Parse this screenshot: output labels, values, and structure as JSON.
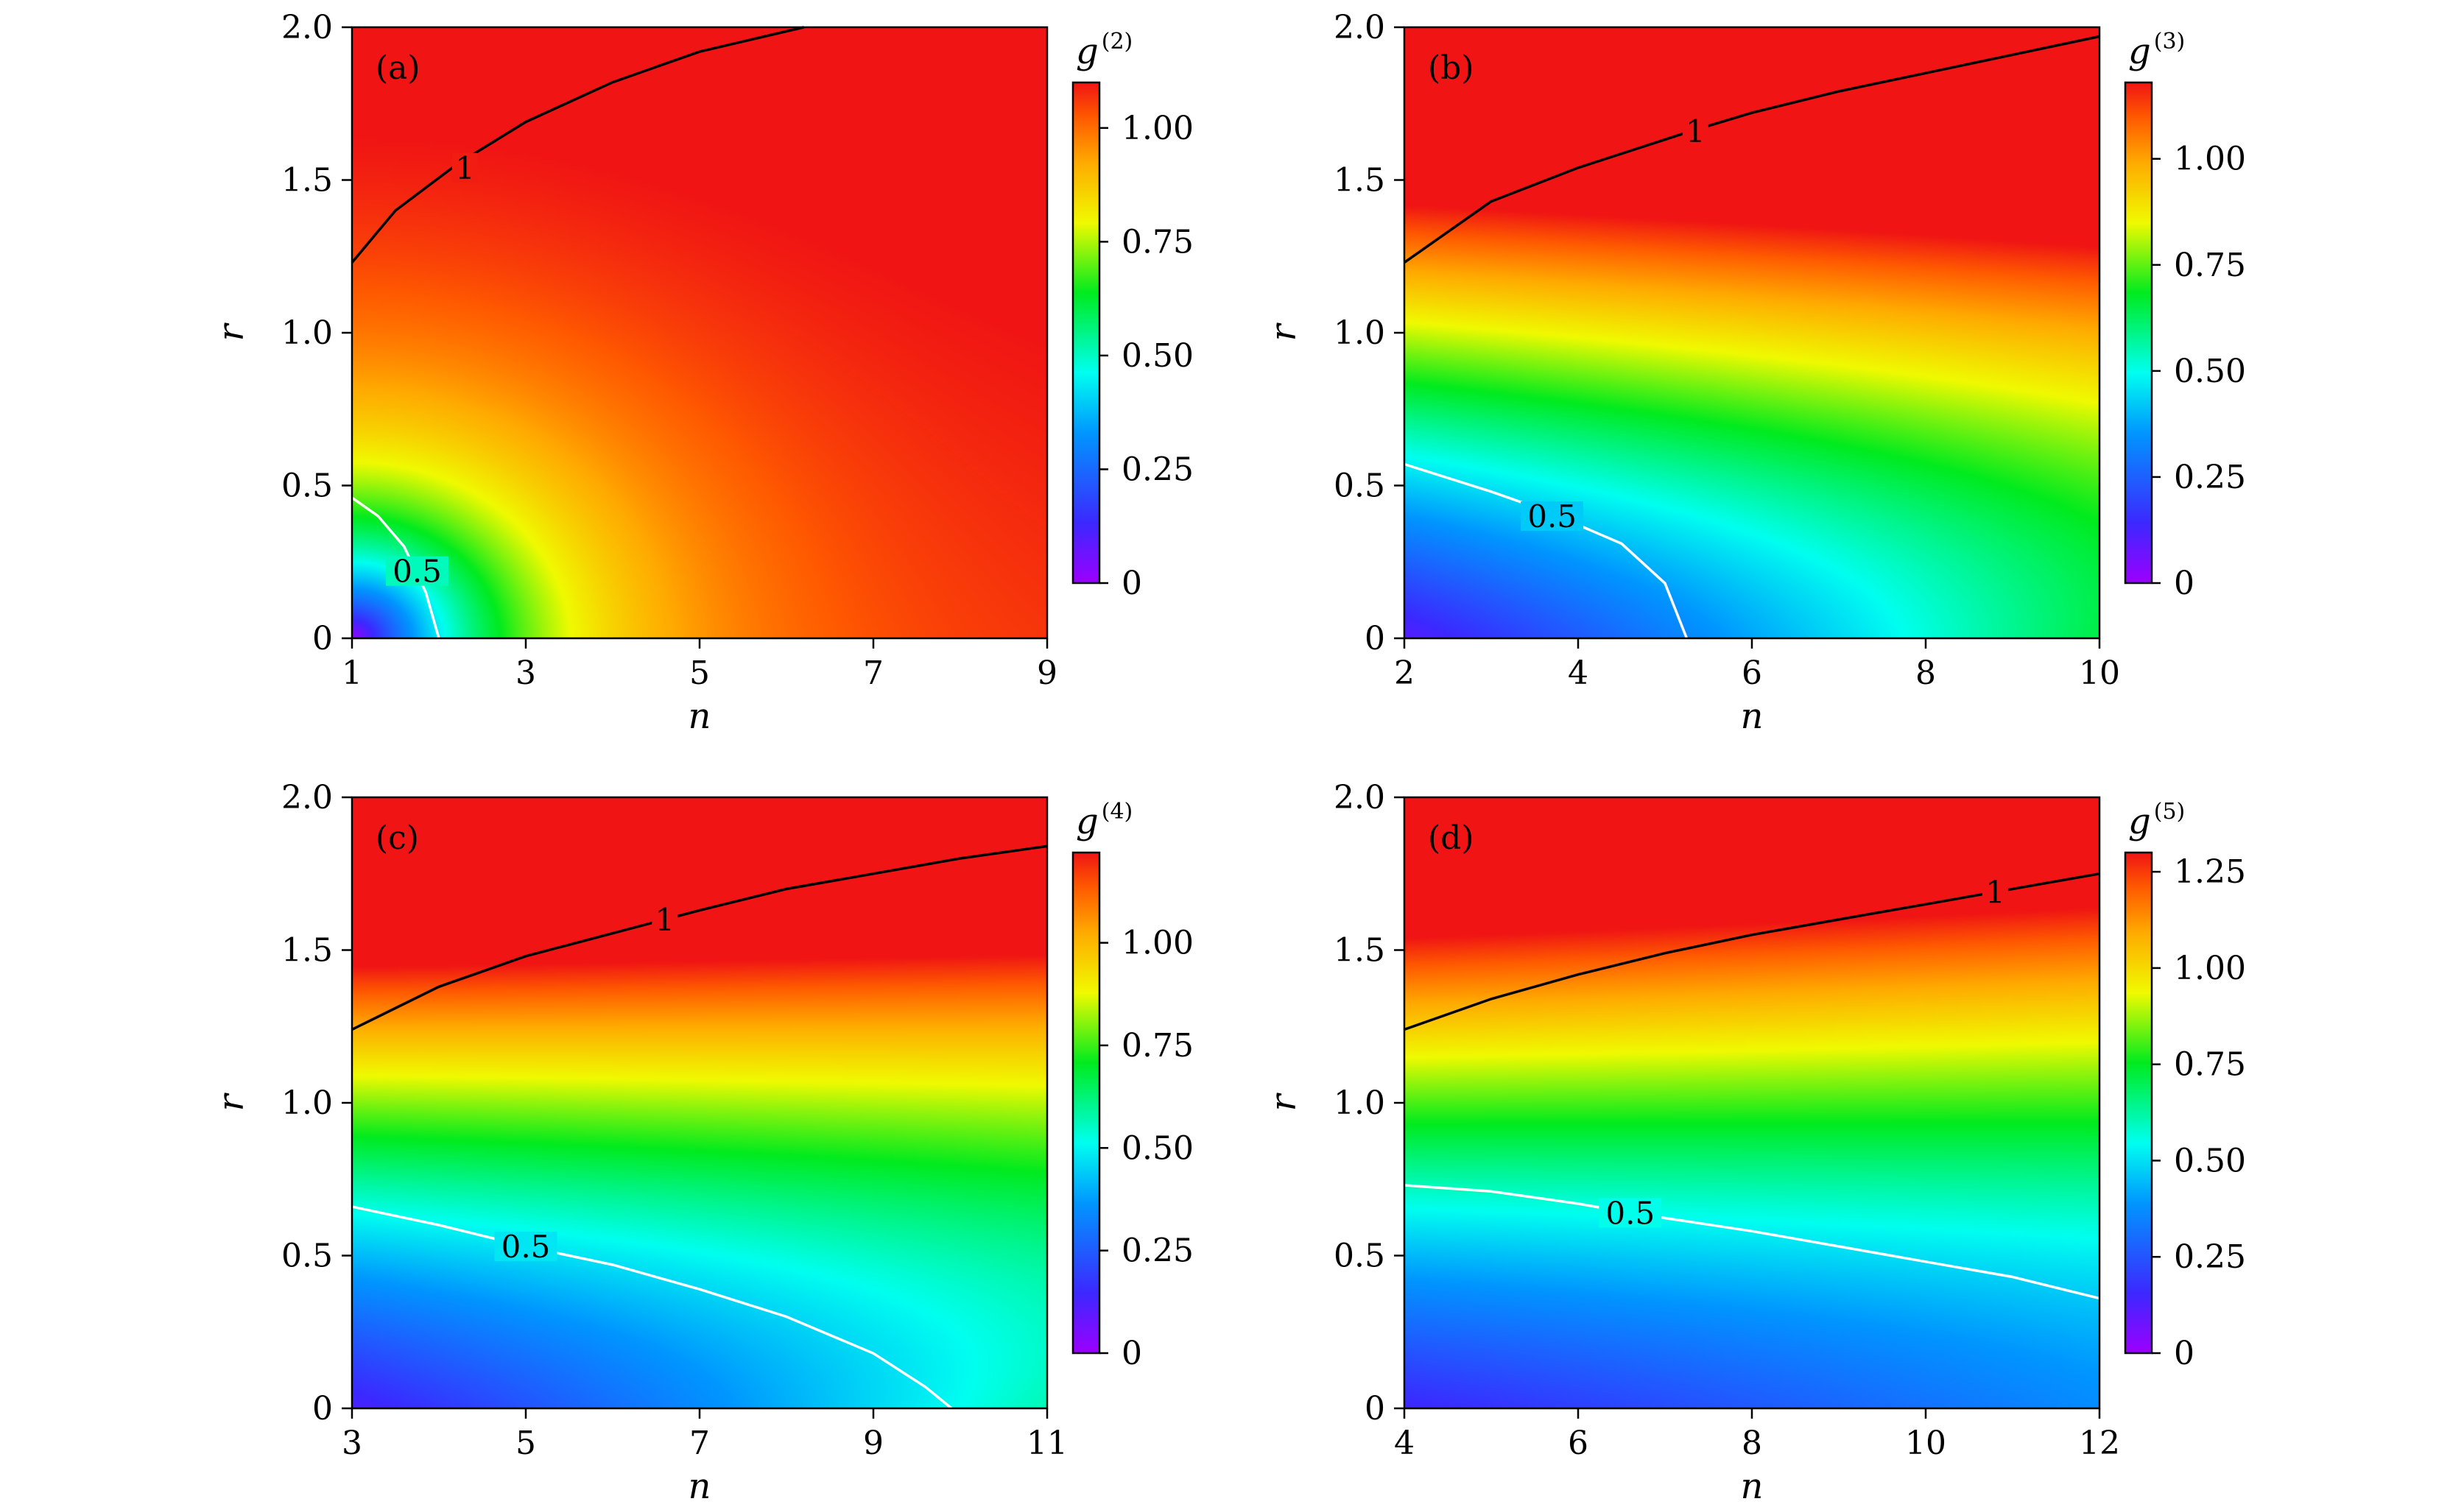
{
  "figure": {
    "layout": "2x2 grid of heatmaps"
  },
  "chart_data": [
    {
      "type": "heatmap",
      "panel_label": "(a)",
      "xlabel": "n",
      "ylabel": "r",
      "xlim": [
        1,
        9
      ],
      "ylim": [
        0,
        2.0
      ],
      "xticks": [
        "1",
        "3",
        "5",
        "7",
        "9"
      ],
      "yticks": [
        "0",
        "0.5",
        "1.0",
        "1.5",
        "2.0"
      ],
      "colorbar": {
        "title": "g",
        "superscript": "(2)",
        "range": [
          0,
          1.1
        ],
        "ticks": [
          "0",
          "0.25",
          "0.50",
          "0.75",
          "1.00"
        ]
      },
      "field_hint": {
        "low_corner": "bottom-left",
        "minimum_value": 0.0,
        "maximum_value": 1.1
      },
      "contours": [
        {
          "level": 1,
          "label": "1",
          "color": "#000000",
          "points_nr": [
            [
              1.0,
              1.23
            ],
            [
              1.5,
              1.4
            ],
            [
              2.2,
              1.55
            ],
            [
              3.0,
              1.69
            ],
            [
              4.0,
              1.82
            ],
            [
              5.0,
              1.92
            ],
            [
              6.2,
              2.0
            ]
          ],
          "label_at": [
            2.3,
            1.54
          ]
        },
        {
          "level": 0.5,
          "label": "0.5",
          "color": "#ffffff",
          "points_nr": [
            [
              1.0,
              0.46
            ],
            [
              1.3,
              0.4
            ],
            [
              1.6,
              0.3
            ],
            [
              1.85,
              0.15
            ],
            [
              2.0,
              0.0
            ]
          ],
          "label_at": [
            1.75,
            0.22
          ]
        }
      ]
    },
    {
      "type": "heatmap",
      "panel_label": "(b)",
      "xlabel": "n",
      "ylabel": "r",
      "xlim": [
        2,
        10
      ],
      "ylim": [
        0,
        2.0
      ],
      "xticks": [
        "2",
        "4",
        "6",
        "8",
        "10"
      ],
      "yticks": [
        "0",
        "0.5",
        "1.0",
        "1.5",
        "2.0"
      ],
      "colorbar": {
        "title": "g",
        "superscript": "(3)",
        "range": [
          0,
          1.18
        ],
        "ticks": [
          "0",
          "0.25",
          "0.50",
          "0.75",
          "1.00"
        ]
      },
      "field_hint": {
        "low_corner": "bottom-left",
        "minimum_value": 0.0,
        "maximum_value": 1.18
      },
      "contours": [
        {
          "level": 1,
          "label": "1",
          "color": "#000000",
          "points_nr": [
            [
              2.0,
              1.23
            ],
            [
              3.0,
              1.43
            ],
            [
              4.0,
              1.54
            ],
            [
              5.3,
              1.66
            ],
            [
              6.0,
              1.72
            ],
            [
              7.0,
              1.79
            ],
            [
              8.0,
              1.85
            ],
            [
              9.0,
              1.91
            ],
            [
              10.0,
              1.97
            ]
          ],
          "label_at": [
            5.35,
            1.66
          ]
        },
        {
          "level": 0.5,
          "label": "0.5",
          "color": "#ffffff",
          "points_nr": [
            [
              2.0,
              0.57
            ],
            [
              3.0,
              0.48
            ],
            [
              3.6,
              0.42
            ],
            [
              4.5,
              0.31
            ],
            [
              5.0,
              0.18
            ],
            [
              5.25,
              0.0
            ]
          ],
          "label_at": [
            3.7,
            0.4
          ]
        }
      ]
    },
    {
      "type": "heatmap",
      "panel_label": "(c)",
      "xlabel": "n",
      "ylabel": "r",
      "xlim": [
        3,
        11
      ],
      "ylim": [
        0,
        2.0
      ],
      "xticks": [
        "3",
        "5",
        "7",
        "9",
        "11"
      ],
      "yticks": [
        "0",
        "0.5",
        "1.0",
        "1.5",
        "2.0"
      ],
      "colorbar": {
        "title": "g",
        "superscript": "(4)",
        "range": [
          0,
          1.22
        ],
        "ticks": [
          "0",
          "0.25",
          "0.50",
          "0.75",
          "1.00"
        ]
      },
      "field_hint": {
        "low_corner": "bottom-left",
        "minimum_value": 0.0,
        "maximum_value": 1.22
      },
      "contours": [
        {
          "level": 1,
          "label": "1",
          "color": "#000000",
          "points_nr": [
            [
              3.0,
              1.24
            ],
            [
              4.0,
              1.38
            ],
            [
              5.0,
              1.48
            ],
            [
              6.6,
              1.6
            ],
            [
              7.0,
              1.63
            ],
            [
              8.0,
              1.7
            ],
            [
              9.0,
              1.75
            ],
            [
              10.0,
              1.8
            ],
            [
              11.0,
              1.84
            ]
          ],
          "label_at": [
            6.6,
            1.6
          ]
        },
        {
          "level": 0.5,
          "label": "0.5",
          "color": "#ffffff",
          "points_nr": [
            [
              3.0,
              0.66
            ],
            [
              4.0,
              0.6
            ],
            [
              5.0,
              0.53
            ],
            [
              6.0,
              0.47
            ],
            [
              7.0,
              0.39
            ],
            [
              8.0,
              0.3
            ],
            [
              9.0,
              0.18
            ],
            [
              9.6,
              0.07
            ],
            [
              9.9,
              0.0
            ]
          ],
          "label_at": [
            5.0,
            0.53
          ]
        }
      ]
    },
    {
      "type": "heatmap",
      "panel_label": "(d)",
      "xlabel": "n",
      "ylabel": "r",
      "xlim": [
        4,
        12
      ],
      "ylim": [
        0,
        2.0
      ],
      "xticks": [
        "4",
        "6",
        "8",
        "10",
        "12"
      ],
      "yticks": [
        "0",
        "0.5",
        "1.0",
        "1.5",
        "2.0"
      ],
      "colorbar": {
        "title": "g",
        "superscript": "(5)",
        "range": [
          0,
          1.3
        ],
        "ticks": [
          "0",
          "0.25",
          "0.50",
          "0.75",
          "1.00",
          "1.25"
        ]
      },
      "field_hint": {
        "low_corner": "bottom-left",
        "minimum_value": 0.0,
        "maximum_value": 1.3
      },
      "contours": [
        {
          "level": 1,
          "label": "1",
          "color": "#000000",
          "points_nr": [
            [
              4.0,
              1.24
            ],
            [
              5.0,
              1.34
            ],
            [
              6.0,
              1.42
            ],
            [
              7.0,
              1.49
            ],
            [
              8.0,
              1.55
            ],
            [
              9.0,
              1.6
            ],
            [
              10.0,
              1.65
            ],
            [
              10.8,
              1.69
            ],
            [
              12.0,
              1.75
            ]
          ],
          "label_at": [
            10.8,
            1.69
          ]
        },
        {
          "level": 0.5,
          "label": "0.5",
          "color": "#ffffff",
          "points_nr": [
            [
              4.0,
              0.73
            ],
            [
              5.0,
              0.71
            ],
            [
              6.0,
              0.67
            ],
            [
              6.6,
              0.64
            ],
            [
              8.0,
              0.58
            ],
            [
              9.0,
              0.53
            ],
            [
              10.0,
              0.48
            ],
            [
              11.0,
              0.43
            ],
            [
              12.0,
              0.36
            ]
          ],
          "label_at": [
            6.6,
            0.64
          ]
        }
      ]
    }
  ]
}
